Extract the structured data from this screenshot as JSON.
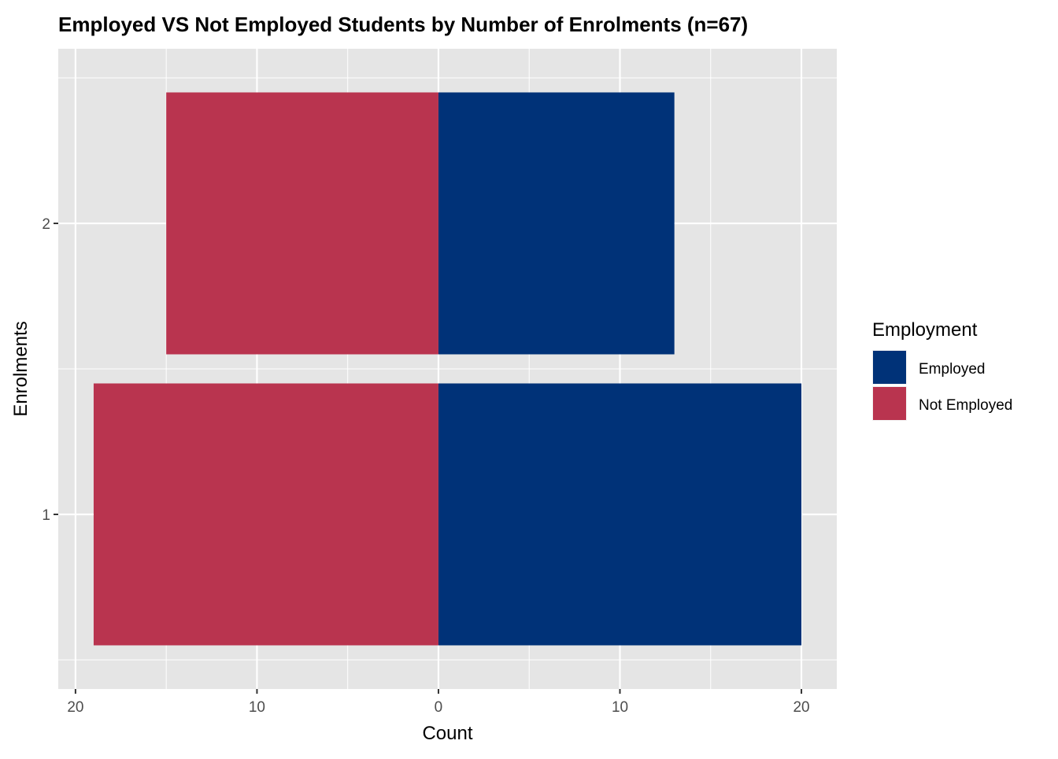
{
  "chart_data": {
    "type": "bar",
    "orientation": "horizontal",
    "layout": "diverging",
    "title": "Employed VS Not Employed Students by Number of Enrolments (n=67)",
    "xlabel": "Count",
    "ylabel": "Enrolments",
    "categories": [
      "1",
      "2"
    ],
    "series": [
      {
        "name": "Employed",
        "values": [
          20,
          13
        ],
        "color": "#003278",
        "direction": "right"
      },
      {
        "name": "Not Employed",
        "values": [
          19,
          15
        ],
        "color": "#b9344f",
        "direction": "left"
      }
    ],
    "xlim": [
      -20.95,
      21.95
    ],
    "ylim": [
      0.4,
      2.6
    ],
    "x_ticks": [
      -20,
      -10,
      0,
      10,
      20
    ],
    "x_tick_labels": [
      "20",
      "10",
      "0",
      "10",
      "20"
    ],
    "grid": true,
    "panel_background": "#e5e5e5",
    "legend": {
      "title": "Employment",
      "position": "right",
      "entries": [
        "Employed",
        "Not Employed"
      ]
    }
  }
}
